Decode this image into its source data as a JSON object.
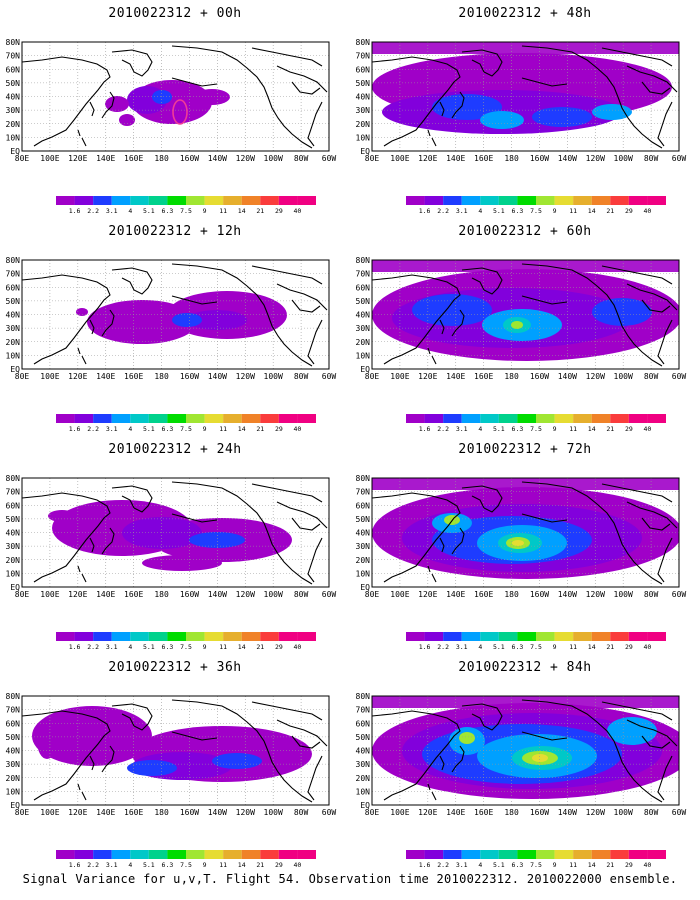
{
  "caption": "Signal Variance for u,v,T. Flight 54. Observation time 2010022312. 2010022000 ensemble.",
  "lat_labels": [
    "EQ",
    "10N",
    "20N",
    "30N",
    "40N",
    "50N",
    "60N",
    "70N",
    "80N"
  ],
  "lon_labels": [
    "80E",
    "100E",
    "120E",
    "140E",
    "160E",
    "180",
    "160W",
    "140W",
    "120W",
    "100W",
    "80W",
    "60W"
  ],
  "colorbar": {
    "labels": [
      "1.6",
      "2.2",
      "3.1",
      "4",
      "5.1",
      "6.3",
      "7.5",
      "9",
      "11",
      "14",
      "21",
      "29",
      "40"
    ],
    "colors": [
      "#a000c8",
      "#8200dc",
      "#1e3cff",
      "#00a0ff",
      "#00c8c8",
      "#00d28c",
      "#00dc00",
      "#a0e632",
      "#e6dc32",
      "#e6af2d",
      "#f08228",
      "#fa3c3c",
      "#f00082"
    ]
  },
  "panels": [
    {
      "id": "p00",
      "title": "2010022312 + 00h"
    },
    {
      "id": "p48",
      "title": "2010022312 + 48h"
    },
    {
      "id": "p12",
      "title": "2010022312 + 12h"
    },
    {
      "id": "p60",
      "title": "2010022312 + 60h"
    },
    {
      "id": "p24",
      "title": "2010022312 + 24h"
    },
    {
      "id": "p72",
      "title": "2010022312 + 72h"
    },
    {
      "id": "p36",
      "title": "2010022312 + 36h"
    },
    {
      "id": "p84",
      "title": "2010022312 + 84h"
    }
  ]
}
